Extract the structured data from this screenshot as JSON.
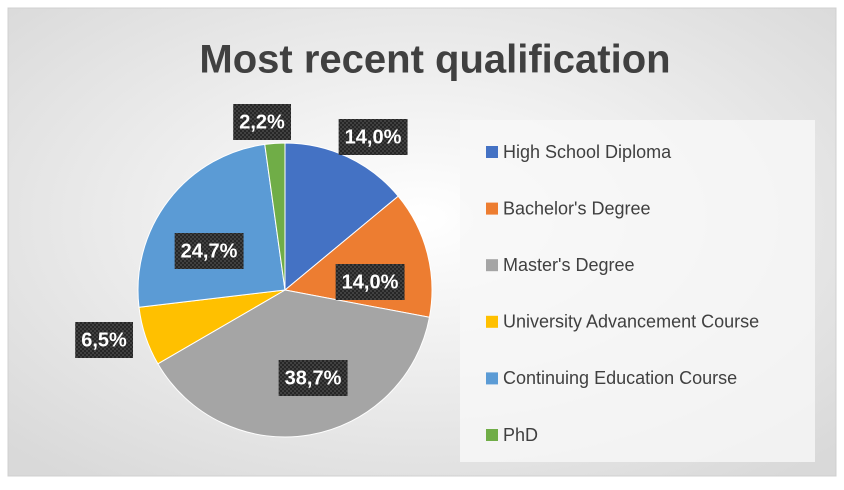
{
  "chart_data": {
    "type": "pie",
    "title": "Most recent qualification",
    "categories": [
      "High School Diploma",
      "Bachelor's Degree",
      "Master's Degree",
      "University Advancement Course",
      "Continuing Education Course",
      "PhD"
    ],
    "values": [
      14.0,
      14.0,
      38.7,
      6.5,
      24.7,
      2.2
    ],
    "value_labels": [
      "14,0%",
      "14,0%",
      "38,7%",
      "6,5%",
      "24,7%",
      "2,2%"
    ],
    "colors": [
      "#4472c4",
      "#ed7d31",
      "#a5a5a5",
      "#ffc000",
      "#5b9bd5",
      "#70ad47"
    ],
    "legend": "right"
  }
}
